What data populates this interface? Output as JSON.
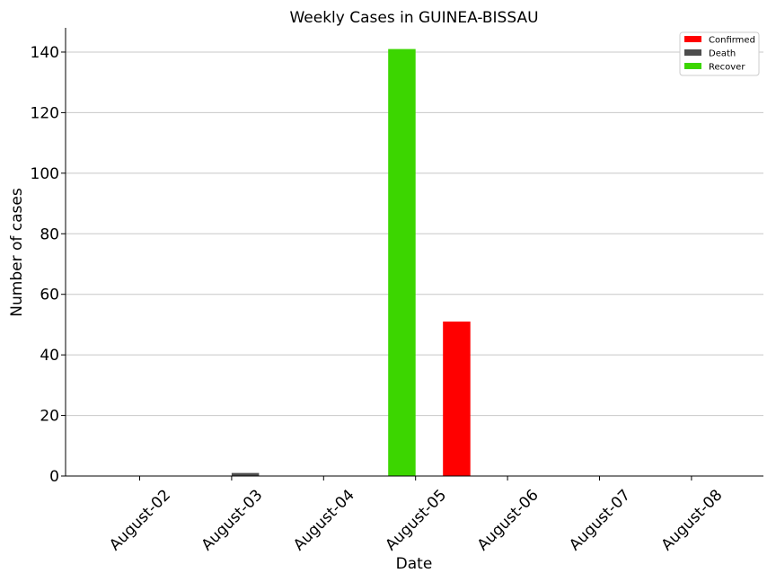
{
  "chart_data": {
    "type": "bar",
    "title": "Weekly Cases in GUINEA-BISSAU",
    "xlabel": "Date",
    "ylabel": "Number of cases",
    "categories": [
      "August-02",
      "August-03",
      "August-04",
      "August-05",
      "August-06",
      "August-07",
      "August-08"
    ],
    "series": [
      {
        "name": "Confirmed",
        "color": "#ff0000",
        "values": [
          0,
          0,
          0,
          51,
          0,
          0,
          0
        ]
      },
      {
        "name": "Death",
        "color": "#4d4d4d",
        "values": [
          0,
          1,
          0,
          0,
          0,
          0,
          0
        ]
      },
      {
        "name": "Recover",
        "color": "#3cd600",
        "values": [
          0,
          0,
          0,
          141,
          0,
          0,
          0
        ]
      }
    ],
    "ylim": [
      0,
      148
    ],
    "yticks": [
      0,
      20,
      40,
      60,
      80,
      100,
      120,
      140
    ],
    "grid": "horizontal",
    "legend": "top-right"
  }
}
